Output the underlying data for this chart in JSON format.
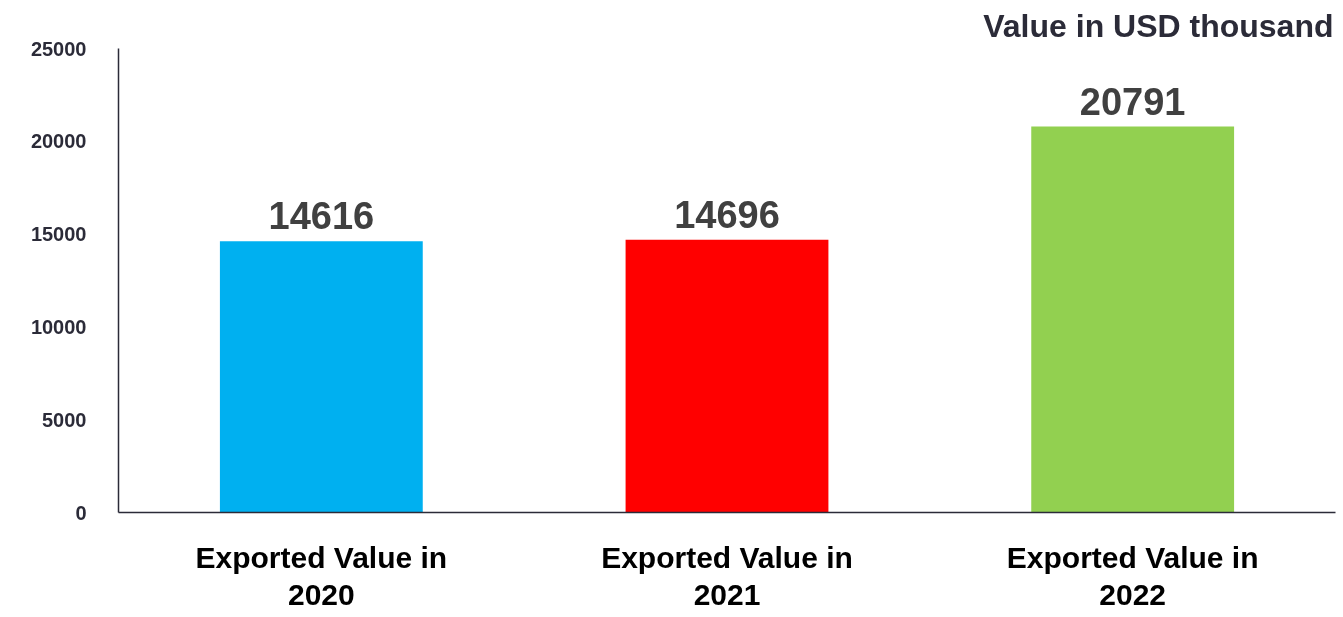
{
  "chart_data": {
    "type": "bar",
    "title": "Value in USD thousand",
    "categories": [
      "Exported Value in 2020",
      "Exported Value in 2021",
      "Exported Value in 2022"
    ],
    "values": [
      14616,
      14696,
      20791
    ],
    "colors": [
      "#00b0f0",
      "#ff0000",
      "#92d050"
    ],
    "ylim": [
      0,
      25000
    ],
    "yticks": [
      0,
      5000,
      10000,
      15000,
      20000,
      25000
    ],
    "data_labels": true
  }
}
